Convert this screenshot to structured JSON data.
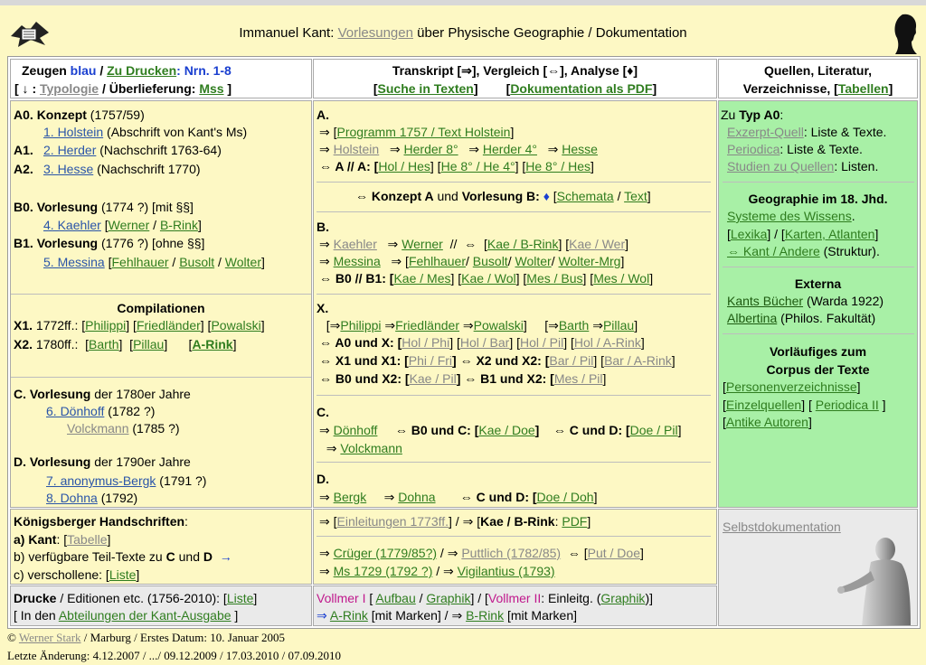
{
  "header": {
    "title_prefix": "Immanuel Kant: ",
    "title_link": "Vorlesungen",
    "title_suffix": " über Physische Geographie / Dokumentation"
  },
  "col1_head": {
    "l1a": "Zeugen ",
    "l1b": "blau",
    "l1c": "  /  ",
    "l1d": "Zu Drucken",
    "l1e": ": Nrn. 1-8",
    "l2a": "[ ↓ : ",
    "l2b": "Typologie",
    "l2c": "  /  Überlieferung: ",
    "l2d": "Mss",
    "l2e": " ]"
  },
  "col2_head": {
    "l1": "Transkript [⇒], Vergleich [⇔], Analyse [♦]",
    "l2a": "[",
    "l2b": "Suche in Texten",
    "l2c": "]        [",
    "l2d": "Dokumentation als PDF",
    "l2e": "]"
  },
  "col3_head": {
    "l1": "Quellen, Literatur,",
    "l2a": "Verzeichnisse, [",
    "l2b": "Tabellen",
    "l2c": "]"
  },
  "left": {
    "a0": "A0.",
    "a0_title": "Konzept",
    "a0_year": " (1757/59)",
    "l1": "1. Holstein",
    "l1_rest": " (Abschrift von Kant's Ms)",
    "a1": "A1.",
    "l2": "2. Herder",
    "l2_rest": " (Nachschrift 1763-64)",
    "a2": "A2.",
    "l3": "3. Hesse",
    "l3_rest": " (Nachschrift 1770)",
    "b0": "B0.",
    "b0_title": "Vorlesung",
    "b0_rest": " (1774 ?) [mit §§]",
    "l4": "4. Kaehler",
    "l4_b": " [",
    "l4_c": "Werner",
    "l4_d": " / ",
    "l4_e": "B-Rink",
    "l4_f": "]",
    "b1": "B1.",
    "b1_title": "Vorlesung",
    "b1_rest": " (1776 ?) [ohne §§]",
    "l5": "5. Messina",
    "l5_b": " [",
    "l5_c": "Fehlhauer",
    "l5_d": " / ",
    "l5_e": "Busolt",
    "l5_f": " / ",
    "l5_g": "Wolter",
    "l5_h": "]",
    "comp": "Compilationen",
    "x1": "X1.",
    "x1_a": " 1772ff.: [",
    "x1_b": "Philippi",
    "x1_c": "] [",
    "x1_d": "Friedländer",
    "x1_e": "] [",
    "x1_f": "Powalski",
    "x1_g": "]",
    "x2": "X2.",
    "x2_a": " 1780ff.:  [",
    "x2_b": "Barth",
    "x2_c": "]  [",
    "x2_d": "Pillau",
    "x2_e": "]      [",
    "x2_f": "A-Rink",
    "x2_g": "]",
    "c": "C.",
    "c_title": "Vorlesung",
    "c_rest": " der 1780er Jahre",
    "l6": "6. Dönhoff",
    "l6_rest": " (1782 ?)",
    "volck": "Volckmann",
    "volck_rest": " (1785 ?)",
    "d": "D.",
    "d_title": "Vorlesung",
    "d_rest": " der 1790er Jahre",
    "l7": "7. anonymus-Bergk",
    "l7_rest": " (1791 ?)",
    "l8": "8. Dohna",
    "l8_rest": " (1792)"
  },
  "konig": {
    "title": "Königsberger Handschriften",
    "title_colon": ":",
    "a": " a) ",
    "a_kant": "Kant",
    "a_c": ": [",
    "a_tab": "Tabelle",
    "a_e": "]",
    "b": " b) verfügbare Teil-Texte zu ",
    "b_c": "C",
    "b_und": " und ",
    "b_d": "D",
    "b_arrow": "  →",
    "cc": " c) verschollene: [",
    "cc_l": "Liste",
    "cc_e": "]"
  },
  "drucke": {
    "a": "Drucke",
    "b": " / Editionen etc. (1756-2010): [",
    "c": "Liste",
    "d": "]",
    "e": " [ In den ",
    "f": "Abteilungen der Kant-Ausgabe",
    "g": " ]"
  },
  "mid": {
    "A": "A.",
    "a1a": " ⇒ [",
    "a1b": "Programm 1757 / Text Holstein",
    "a1c": "]",
    "a2a": " ⇒ ",
    "a2b": "Holstein",
    "a2c": "   ⇒ ",
    "a2d": "Herder 8°",
    "a2e": "   ⇒ ",
    "a2f": "Herder 4°",
    "a2g": "   ⇒ ",
    "a2h": "Hesse",
    "a3a": " ⇔ A // A: [",
    "a3b": "Hol / Hes",
    "a3c": "]  [",
    "a3d": "He  8° / He  4°",
    "a3e": "]  [",
    "a3f": "He  8° / Hes",
    "a3g": "]",
    "konz_a": "⇔ Konzept A",
    "konz_b": " und ",
    "konz_c": "Vorlesung B:",
    "konz_d": " ♦ ",
    "konz_e": "[",
    "konz_f": "Schemata",
    "konz_g": " / ",
    "konz_h": "Text",
    "konz_i": "]",
    "B": "B.",
    "b1a": " ⇒ ",
    "b1b": "Kaehler",
    "b1c": "   ⇒ ",
    "b1d": "Werner",
    "b1e": "  //  ⇔  [",
    "b1f": "Kae / B-Rink",
    "b1g": "]  [",
    "b1h": "Kae / Wer",
    "b1i": "]",
    "b2a": " ⇒ ",
    "b2b": "Messina",
    "b2c": "   ⇒ [",
    "b2d": "Fehlhauer",
    "b2e": "/ ",
    "b2f": "Busolt",
    "b2g": "/ ",
    "b2h": "Wolter",
    "b2i": "/ ",
    "b2j": "Wolter-Mrg",
    "b2k": "]",
    "b3a": " ⇔ B0 // B1: [",
    "b3b": "Kae / Mes",
    "b3c": "]  [",
    "b3d": "Kae / Wol",
    "b3e": "]  [",
    "b3f": "Mes / Bus",
    "b3g": "]  [",
    "b3h": "Mes / Wol",
    "b3i": "]",
    "X": "X.",
    "x1a": "  [⇒",
    "x1b": "Philippi",
    "x1c": " ⇒",
    "x1d": "Friedländer",
    "x1e": " ⇒",
    "x1f": "Powalski",
    "x1g": "]     [⇒",
    "x1h": "Barth",
    "x1i": " ⇒",
    "x1j": "Pillau",
    "x1k": "]",
    "x2a": " ⇔ A0 und X: [",
    "x2b": "Hol / Phi",
    "x2c": "]  [",
    "x2d": "Hol / Bar",
    "x2e": "]  [",
    "x2f": "Hol / Pil",
    "x2g": "]  [",
    "x2h": "Hol / A-Rink",
    "x2i": "]",
    "x3a": " ⇔ X1 und X1: [",
    "x3b": "Phi / Fri",
    "x3c": "]  ⇔ X2 und X2: [",
    "x3d": "Bar / Pil",
    "x3e": "]  [",
    "x3f": "Bar / A-Rink",
    "x3g": "]",
    "x4a": " ⇔ B0 und X2: [",
    "x4b": "Kae / Pil",
    "x4c": "]  ⇔ B1 und X2: [",
    "x4d": "Mes / Pil",
    "x4e": "]",
    "C": "C.",
    "c1a": " ⇒ ",
    "c1b": "Dönhoff",
    "c1c": "     ⇔ B0 und C: [",
    "c1d": "Kae / Doe",
    "c1e": "]    ⇔ C und D: [",
    "c1f": "Doe / Pil",
    "c1g": "]",
    "c2a": "  ⇒ ",
    "c2b": "Volckmann",
    "D": "D.",
    "d1a": " ⇒ ",
    "d1b": "Bergk",
    "d1c": "     ⇒ ",
    "d1d": "Dohna",
    "d1e": "       ⇔ C und D: [",
    "d1f": "Doe / Doh",
    "d1g": "]"
  },
  "mid_k": {
    "k1a": " ⇒ [",
    "k1b": "Einleitungen 1773ff.",
    "k1c": "] / ⇒ [",
    "k1d": "Kae / B-Rink",
    "k1e": ": ",
    "k1f": "PDF",
    "k1g": "]",
    "k2a": " ⇒ ",
    "k2b": "Crüger (1779/85?)",
    "k2c": " / ⇒ ",
    "k2d": "Puttlich (1782/85)",
    "k2e": "  ⇔ [",
    "k2f": "Put / Doe",
    "k2g": "]",
    "k3a": " ⇒ ",
    "k3b": "Ms 1729 (1792 ?)",
    "k3c": " / ⇒ ",
    "k3d": "Vigilantius (1793)"
  },
  "mid_v": {
    "v1a": "Vollmer I",
    "v1b": " [ ",
    "v1c": "Aufbau",
    "v1d": " / ",
    "v1e": "Graphik",
    "v1f": "] / [",
    "v1g": "Vollmer II",
    "v1h": ": Einleitg. (",
    "v1i": "Graphik",
    "v1j": ")]",
    "v2a": "⇒ ",
    "v2b": "A-Rink",
    "v2c": " [mit Marken]  /  ⇒ ",
    "v2d": "B-Rink",
    "v2e": " [mit Marken]"
  },
  "right": {
    "zu_a": "Zu ",
    "zu_b": "Typ A0",
    "zu_c": ":",
    "r1a": "Exzerpt-Quell",
    "r1b": ": Liste & Texte.",
    "r2a": "Periodica",
    "r2b": ": Liste & Texte.",
    "r3a": "Studien zu Quellen",
    "r3b": ": Listen.",
    "geo": "Geographie im 18. Jhd.",
    "g1": "Systeme des Wissens",
    "g1b": ".",
    "g2a": "[",
    "g2b": "Lexika",
    "g2c": "] / [",
    "g2d": "Karten, Atlanten",
    "g2e": "]",
    "g3a": "⇔ Kant / Andere",
    "g3b": " (Struktur).",
    "ext": "Externa",
    "e1a": "Kants Bücher",
    "e1b": " (Warda 1922)",
    "e2a": "Albertina",
    "e2b": " (Philos. Fakultät)",
    "vor1": "Vorläufiges zum",
    "vor2": "Corpus der Texte",
    "v1a": "[",
    "v1b": "Personenverzeichnisse",
    "v1c": "]",
    "v2a": "[",
    "v2b": "Einzelquellen",
    "v2c": "] [ ",
    "v2d": "Periodica II",
    "v2e": " ]",
    "v3a": "[",
    "v3b": "Antike Autoren",
    "v3c": "]",
    "self": "Selbstdokumentation"
  },
  "footer": {
    "l1a": "© ",
    "l1b": "Werner Stark",
    "l1c": " / Marburg / Erstes Datum: 10. Januar 2005",
    "l2": "Letzte Änderung: 4.12.2007 / .../ 09.12.2009 / 17.03.2010 / 07.09.2010"
  }
}
